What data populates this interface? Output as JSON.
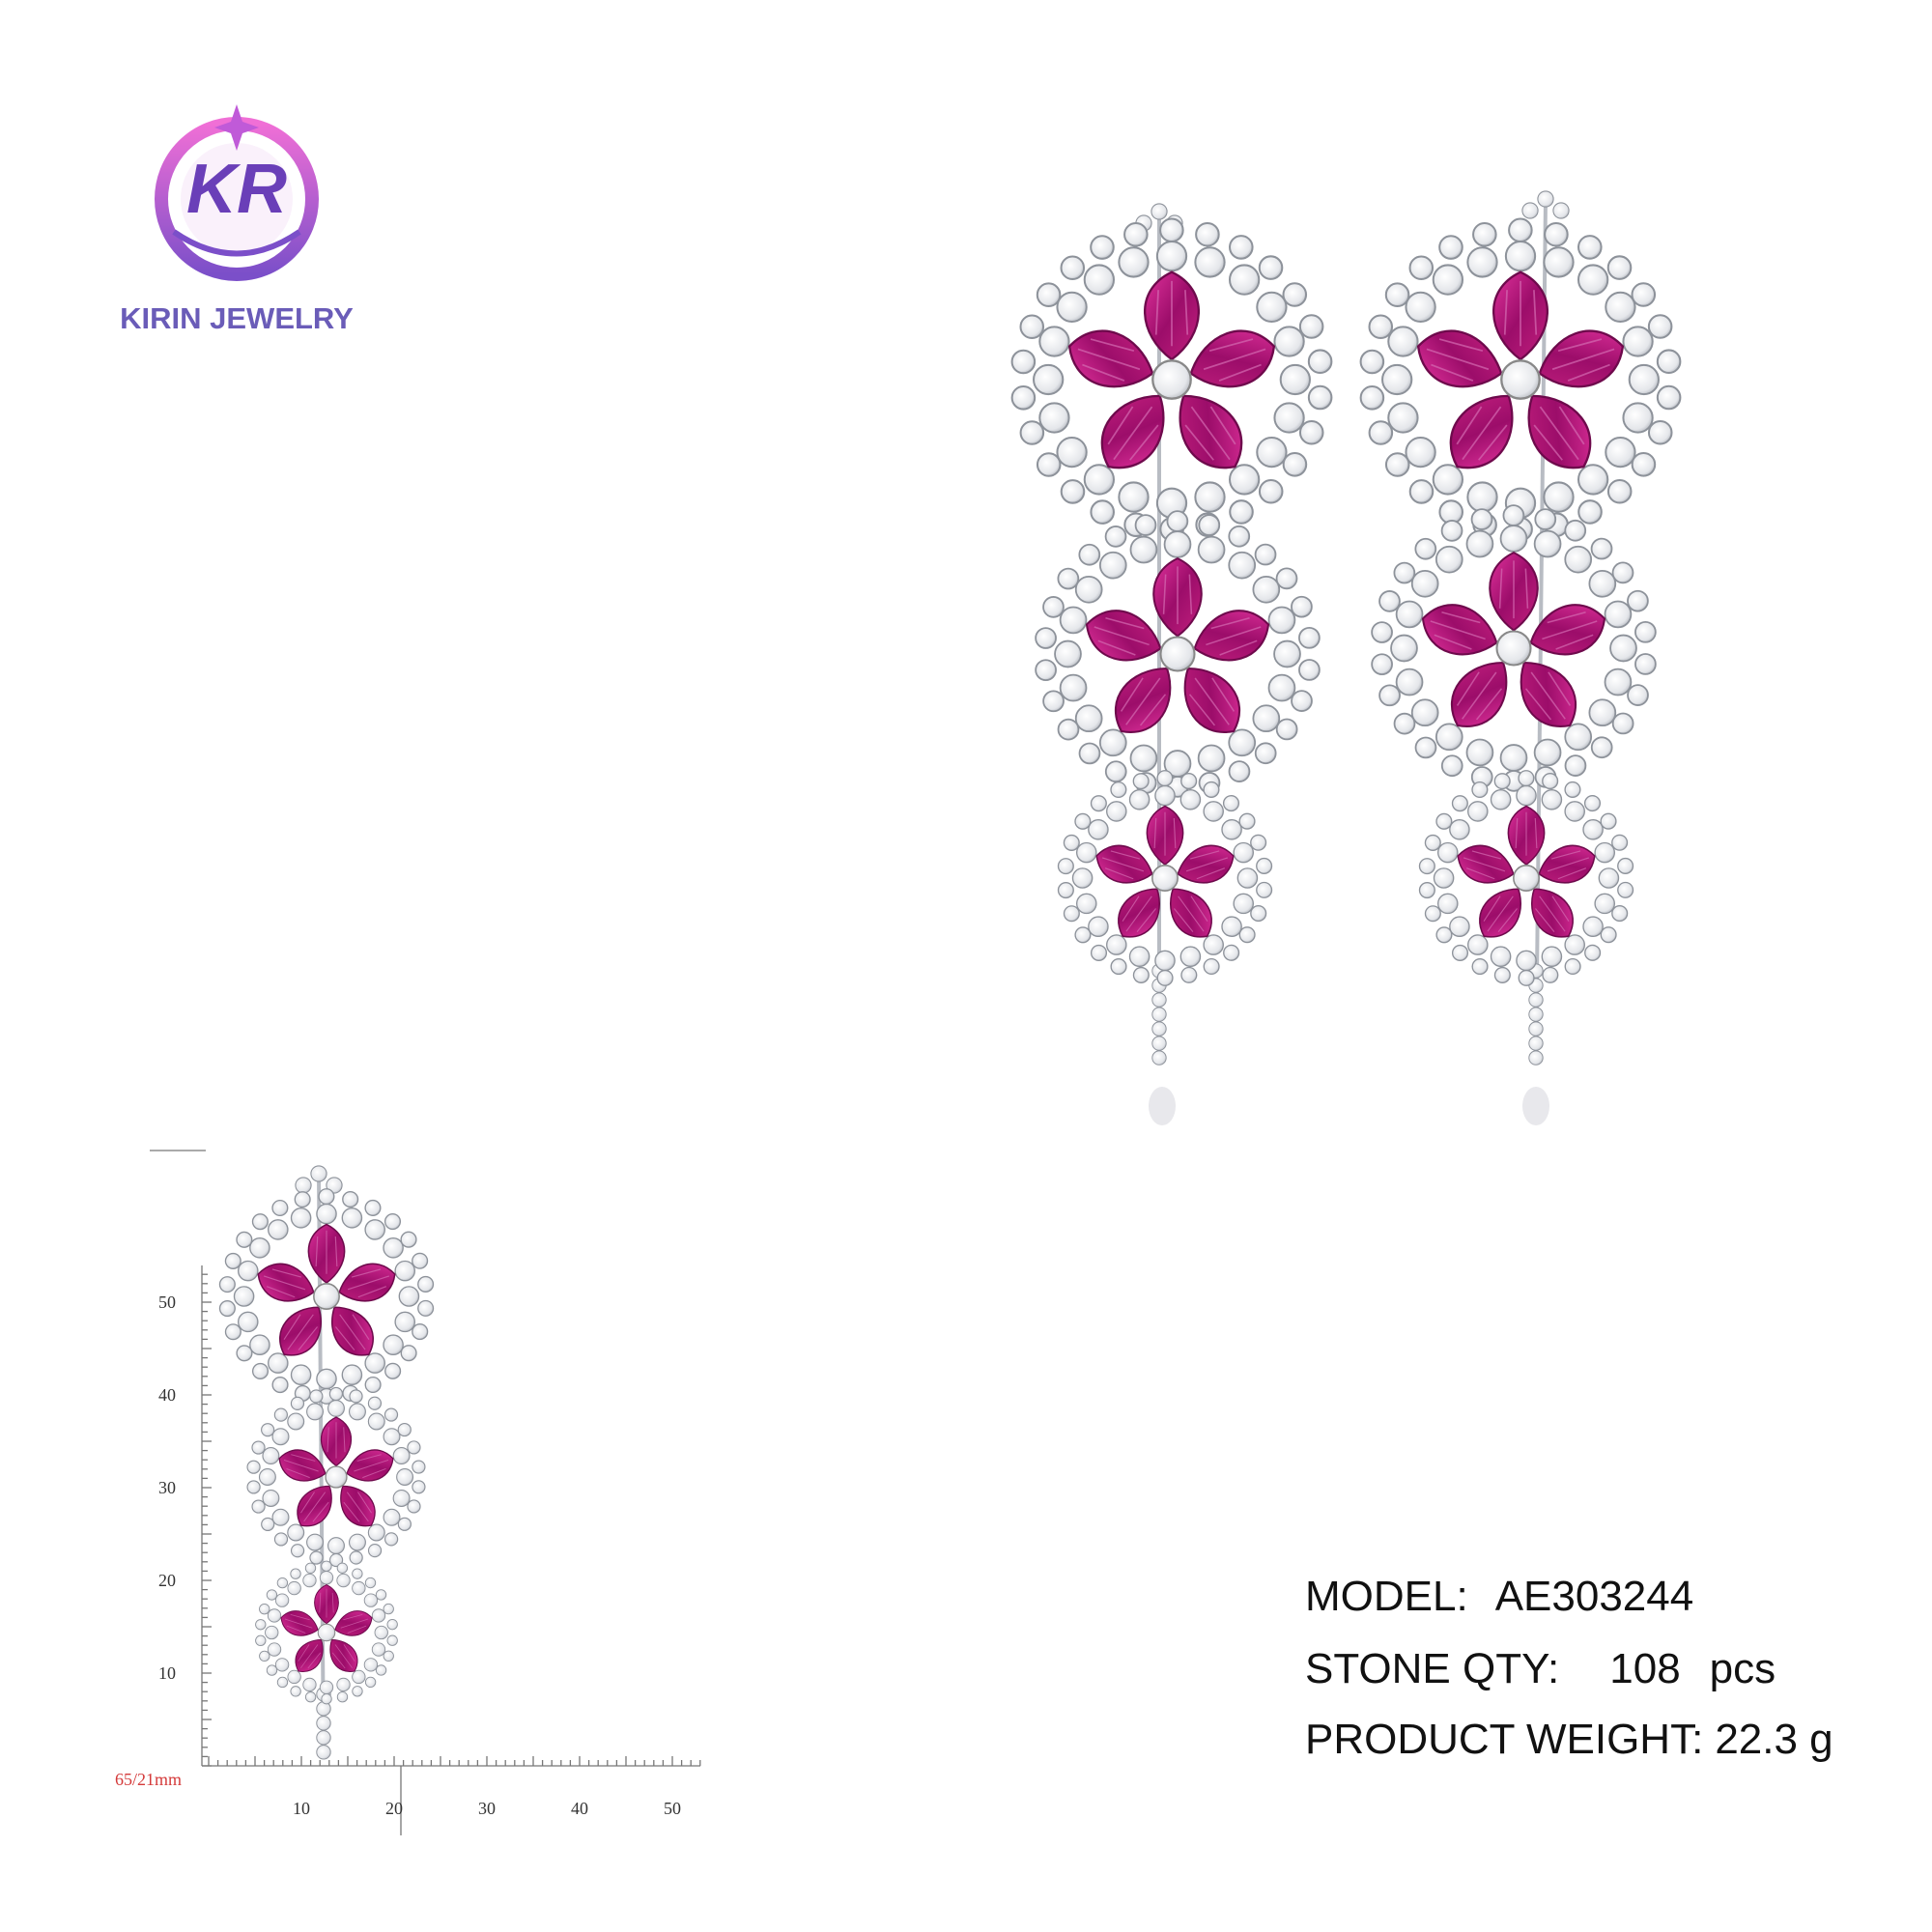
{
  "logo": {
    "monogram": "KR",
    "brand": "KIRIN JEWELRY"
  },
  "specs": [
    {
      "label": "MODEL:",
      "value": "AE303244"
    },
    {
      "label": "STONE QTY:",
      "value": "108",
      "unit": "pcs"
    },
    {
      "label": "PRODUCT WEIGHT:",
      "value": "22.3 g"
    }
  ],
  "ruler": {
    "size_label": "65/21mm",
    "vertical_ticks": [
      10,
      20,
      30,
      40,
      50
    ],
    "horizontal_ticks": [
      10,
      20,
      30,
      40,
      50
    ]
  }
}
